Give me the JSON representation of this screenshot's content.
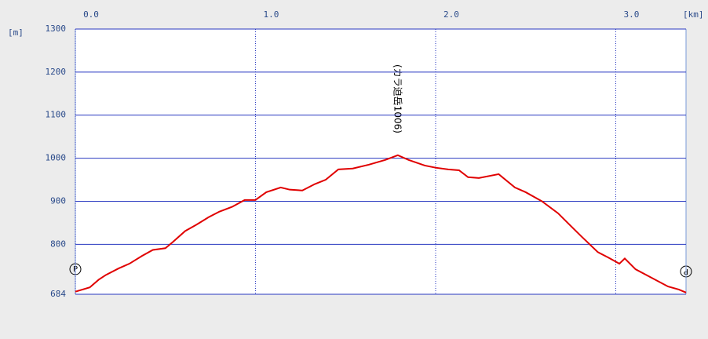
{
  "chart_data": {
    "type": "line",
    "x_unit": "[km]",
    "y_unit": "[m]",
    "x": [
      0,
      0.08,
      0.13,
      0.17,
      0.24,
      0.3,
      0.37,
      0.43,
      0.5,
      0.54,
      0.61,
      0.67,
      0.74,
      0.8,
      0.87,
      0.94,
      1.0,
      1.06,
      1.14,
      1.19,
      1.26,
      1.33,
      1.39,
      1.46,
      1.54,
      1.63,
      1.72,
      1.79,
      1.85,
      1.94,
      2.0,
      2.07,
      2.13,
      2.18,
      2.24,
      2.35,
      2.44,
      2.5,
      2.59,
      2.68,
      2.74,
      2.81,
      2.9,
      2.96,
      3.02,
      3.05,
      3.11,
      3.2,
      3.29,
      3.35,
      3.39
    ],
    "series": [
      {
        "color": "#e00000",
        "values": [
          690,
          700,
          718,
          729,
          744,
          755,
          773,
          787,
          791,
          805,
          831,
          845,
          863,
          876,
          887,
          903,
          903,
          921,
          932,
          927,
          925,
          940,
          950,
          974,
          976,
          985,
          996,
          1007,
          996,
          983,
          978,
          974,
          972,
          956,
          954,
          963,
          932,
          921,
          900,
          872,
          847,
          818,
          782,
          769,
          755,
          767,
          742,
          722,
          702,
          695,
          688
        ]
      }
    ],
    "xlim": [
      0,
      3.39
    ],
    "ylim": [
      684,
      1300
    ],
    "xticks": [
      {
        "value": 0,
        "label": "0.0"
      },
      {
        "value": 1,
        "label": "1.0"
      },
      {
        "value": 2,
        "label": "2.0"
      },
      {
        "value": 3,
        "label": "3.0"
      }
    ],
    "yticks": [
      684,
      800,
      900,
      1000,
      1100,
      1200,
      1300
    ],
    "annotations": [
      "(カラ迫岳1006)",
      "P",
      "P"
    ],
    "grid": true
  }
}
